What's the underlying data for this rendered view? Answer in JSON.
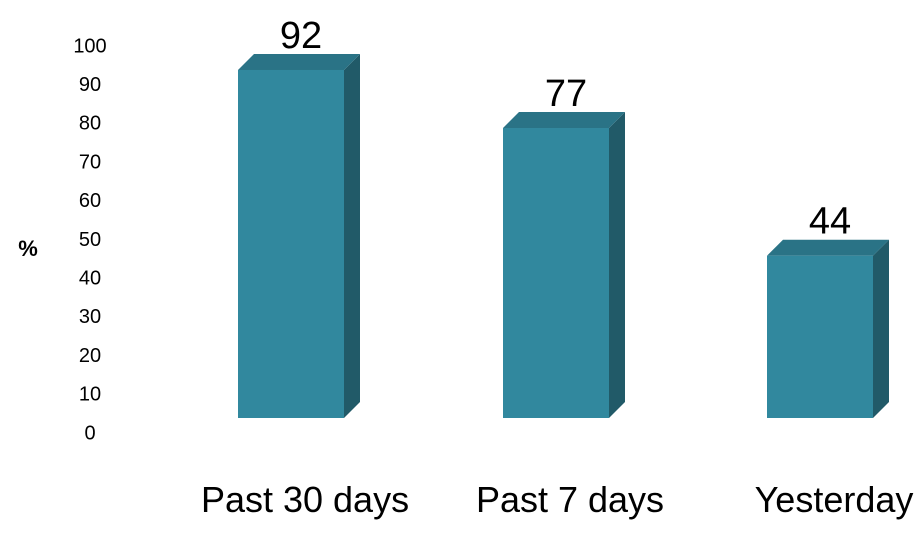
{
  "chart_data": {
    "type": "bar",
    "title": "",
    "xlabel": "",
    "ylabel": "%",
    "ylim": [
      0,
      100
    ],
    "yticks": [
      0,
      10,
      20,
      30,
      40,
      50,
      60,
      70,
      80,
      90,
      100
    ],
    "categories": [
      "Past 30 days",
      "Past 7 days",
      "Yesterday"
    ],
    "values": [
      92,
      77,
      44
    ],
    "data_labels": [
      "92",
      "77",
      "44"
    ],
    "grid": false,
    "legend": "none",
    "style": "3d-column",
    "colors": {
      "bar_front": "#31889E",
      "bar_side": "#215A68",
      "bar_top": "#2A7386",
      "text": "#000000"
    }
  }
}
